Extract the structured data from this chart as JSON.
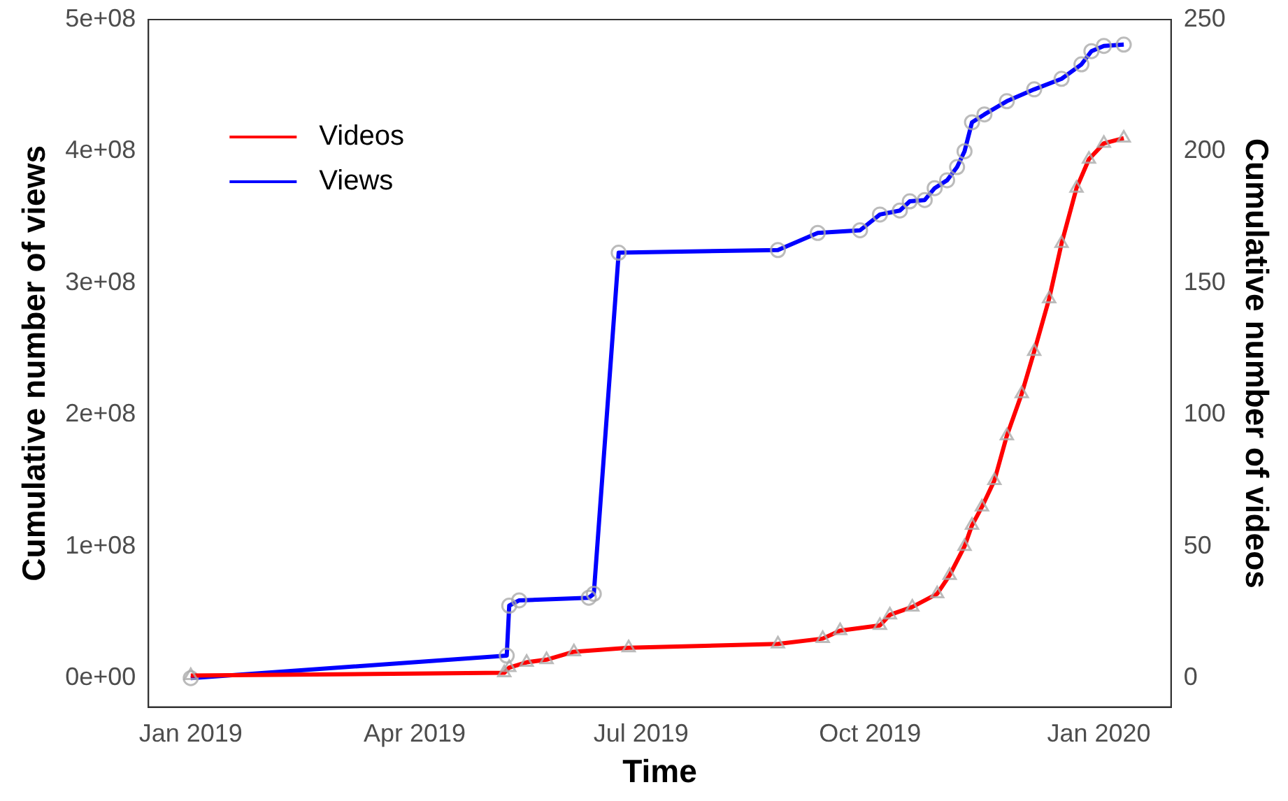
{
  "chart_data": {
    "type": "line",
    "xlabel": "Time",
    "ylabel": "Cumulative number of views",
    "y2label": "Cumulative number of videos",
    "xlim": [
      "2018-12-15",
      "2020-01-30"
    ],
    "xticks": [
      {
        "value": "2019-01-01",
        "label": "Jan 2019"
      },
      {
        "value": "2019-04-01",
        "label": "Apr 2019"
      },
      {
        "value": "2019-07-01",
        "label": "Jul 2019"
      },
      {
        "value": "2019-10-01",
        "label": "Oct 2019"
      },
      {
        "value": "2020-01-01",
        "label": "Jan 2020"
      }
    ],
    "ylim": [
      -22000000,
      500000000
    ],
    "yticks": [
      {
        "value": 0,
        "label": "0e+00"
      },
      {
        "value": 100000000,
        "label": "1e+08"
      },
      {
        "value": 200000000,
        "label": "2e+08"
      },
      {
        "value": 300000000,
        "label": "3e+08"
      },
      {
        "value": 400000000,
        "label": "4e+08"
      },
      {
        "value": 500000000,
        "label": "5e+08"
      }
    ],
    "y2lim": [
      -11,
      250
    ],
    "y2ticks": [
      0,
      50,
      100,
      150,
      200,
      250
    ],
    "grid": false,
    "legend": "top left",
    "series": [
      {
        "name": "Videos",
        "color": "#ff0000",
        "axis": "y2",
        "marker": "triangle",
        "x": [
          "2019-01-01",
          "2019-05-07",
          "2019-05-09",
          "2019-05-16",
          "2019-05-24",
          "2019-06-04",
          "2019-06-26",
          "2019-08-25",
          "2019-09-12",
          "2019-09-19",
          "2019-10-05",
          "2019-10-09",
          "2019-10-18",
          "2019-10-28",
          "2019-11-02",
          "2019-11-08",
          "2019-11-11",
          "2019-11-15",
          "2019-11-20",
          "2019-11-25",
          "2019-12-01",
          "2019-12-06",
          "2019-12-12",
          "2019-12-17",
          "2019-12-23",
          "2019-12-28",
          "2020-01-03",
          "2020-01-11"
        ],
        "values": [
          1,
          2,
          4,
          6,
          7,
          10,
          11.5,
          13,
          15,
          18,
          20,
          24,
          27,
          32,
          39,
          50,
          58,
          65,
          75,
          92,
          108,
          124,
          144,
          165,
          186,
          197,
          203,
          205
        ]
      },
      {
        "name": "Views",
        "color": "#0000ff",
        "marker": "circle",
        "x": [
          "2019-01-01",
          "2019-05-08",
          "2019-05-09",
          "2019-05-13",
          "2019-06-10",
          "2019-06-12",
          "2019-06-22",
          "2019-08-25",
          "2019-09-10",
          "2019-09-27",
          "2019-10-05",
          "2019-10-13",
          "2019-10-17",
          "2019-10-23",
          "2019-10-27",
          "2019-11-01",
          "2019-11-05",
          "2019-11-08",
          "2019-11-11",
          "2019-11-16",
          "2019-11-25",
          "2019-12-06",
          "2019-12-17",
          "2019-12-25",
          "2019-12-29",
          "2020-01-03",
          "2020-01-11"
        ],
        "values": [
          0,
          17000000,
          55000000,
          59000000,
          61000000,
          64000000,
          323000000,
          325000000,
          338000000,
          340000000,
          352000000,
          355000000,
          362000000,
          363000000,
          372000000,
          378000000,
          388000000,
          400000000,
          422000000,
          428000000,
          438000000,
          447000000,
          455000000,
          466000000,
          476000000,
          480000000,
          481000000
        ]
      }
    ]
  }
}
